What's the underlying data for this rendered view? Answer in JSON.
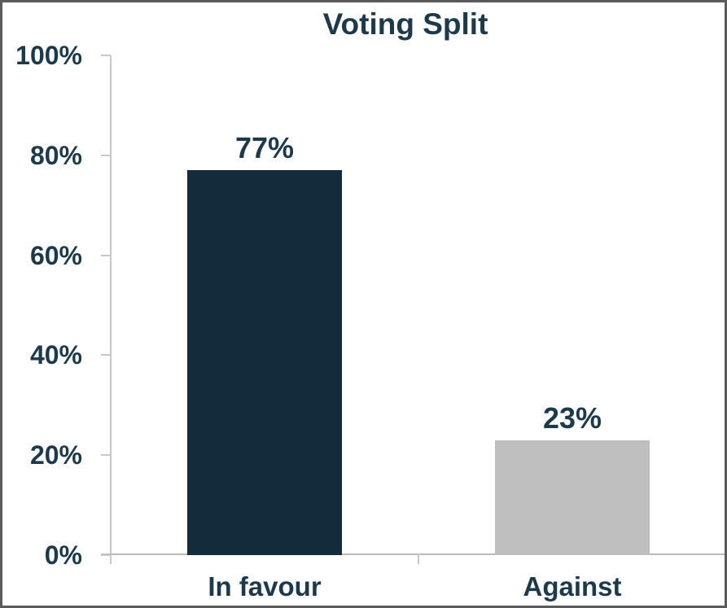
{
  "frame": {
    "background": "#ffffff",
    "border_color": "#5b5b5b"
  },
  "chart_data": {
    "type": "bar",
    "title": "Voting Split",
    "categories": [
      "In favour",
      "Against"
    ],
    "values": [
      77,
      23
    ],
    "value_labels": [
      "77%",
      "23%"
    ],
    "series": [
      {
        "name": "Voting Split",
        "values": [
          77,
          23
        ]
      }
    ],
    "bar_colors": [
      "#132b3b",
      "#bfbfbf"
    ],
    "y_ticks": [
      "0%",
      "20%",
      "40%",
      "60%",
      "80%",
      "100%"
    ],
    "y_tick_values": [
      0,
      20,
      40,
      60,
      80,
      100
    ],
    "ylim": [
      0,
      100
    ],
    "xlabel": "",
    "ylabel": "",
    "grid": false,
    "legend": false,
    "axis_color": "#c9c9c9",
    "baseline_color": "#b9b9b9",
    "text_color": "#1d3a4b"
  }
}
